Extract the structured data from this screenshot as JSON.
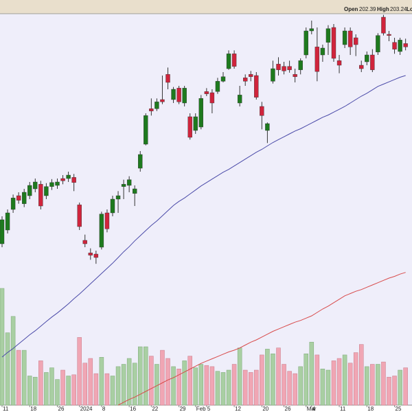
{
  "chart_data": {
    "type": "candlestick",
    "header_labels": [
      "Open",
      "High",
      "Lo"
    ],
    "categories": [
      "11",
      null,
      null,
      null,
      null,
      "18",
      null,
      null,
      null,
      null,
      "26",
      null,
      null,
      null,
      "2024",
      null,
      null,
      null,
      "8",
      null,
      null,
      null,
      null,
      "16",
      null,
      null,
      null,
      "22",
      null,
      null,
      null,
      null,
      "29",
      null,
      null,
      "Feb",
      null,
      "5",
      null,
      null,
      null,
      null,
      "12",
      null,
      null,
      null,
      null,
      "20",
      null,
      null,
      null,
      "26",
      null,
      null,
      null,
      "Mar",
      "4",
      null,
      null,
      null,
      null,
      "11",
      null,
      null,
      null,
      null,
      "18",
      null,
      null,
      null,
      null,
      "25",
      null,
      null
    ],
    "open": [
      167.4,
      169.8,
      173.4,
      175.8,
      174.4,
      175.8,
      177.0,
      177.8,
      175.8,
      177.4,
      177.6,
      178.8,
      178.8,
      179.0,
      174.2,
      168.0,
      165.8,
      165.6,
      166.8,
      172.8,
      172.8,
      175.2,
      177.4,
      177.6,
      176.2,
      180.6,
      184.8,
      191.0,
      191.0,
      192.6,
      197.0,
      192.6,
      194.6,
      192.0,
      189.6,
      187.2,
      187.8,
      194.0,
      193.8,
      194.0,
      195.8,
      198.0,
      200.6,
      192.0,
      196.4,
      197.0,
      196.8,
      191.4,
      187.2,
      195.8,
      198.8,
      198.4,
      198.4,
      197.0,
      197.8,
      200.4,
      204.6,
      201.8,
      200.4,
      202.6,
      205.2,
      199.4,
      202.2,
      204.6,
      203.4,
      198.6,
      199.2,
      200.4,
      200.9,
      207.0,
      204.0,
      202.6,
      201.0,
      202.39
    ],
    "high": [
      172.2,
      173.4,
      176.0,
      176.4,
      177.0,
      178.2,
      178.8,
      178.4,
      178.0,
      178.7,
      178.8,
      179.4,
      180.0,
      179.6,
      174.6,
      169.0,
      166.6,
      166.2,
      173.0,
      173.4,
      175.8,
      176.6,
      178.6,
      179.2,
      177.6,
      183.6,
      190.2,
      192.8,
      192.8,
      196.8,
      198.2,
      194.8,
      195.0,
      195.0,
      190.2,
      190.2,
      193.4,
      194.6,
      194.4,
      196.4,
      197.4,
      201.2,
      201.2,
      195.0,
      197.0,
      197.6,
      197.4,
      192.2,
      188.6,
      199.4,
      200.0,
      199.2,
      199.4,
      198.0,
      199.8,
      205.2,
      206.4,
      205.2,
      202.2,
      205.6,
      205.8,
      200.4,
      205.2,
      205.2,
      204.0,
      199.4,
      201.0,
      201.4,
      204.2,
      207.4,
      204.6,
      203.4,
      203.4,
      203.24
    ],
    "low": [
      166.8,
      169.2,
      172.8,
      174.4,
      173.8,
      175.2,
      176.4,
      173.4,
      175.2,
      176.8,
      177.0,
      177.8,
      178.2,
      176.6,
      169.8,
      166.8,
      164.6,
      163.9,
      166.4,
      169.4,
      172.2,
      172.8,
      175.2,
      176.4,
      174.0,
      180.0,
      184.6,
      189.8,
      190.6,
      191.8,
      194.4,
      192.0,
      191.8,
      191.4,
      185.6,
      186.6,
      187.4,
      193.2,
      190.2,
      193.6,
      195.6,
      197.8,
      198.0,
      191.4,
      195.0,
      195.8,
      192.6,
      187.4,
      185.0,
      195.4,
      196.8,
      197.0,
      197.3,
      195.6,
      197.0,
      199.8,
      204.0,
      195.8,
      199.2,
      200.4,
      199.2,
      197.2,
      201.6,
      200.4,
      200.2,
      197.4,
      198.6,
      197.4,
      200.4,
      203.8,
      202.8,
      200.6,
      200.4,
      201.2
    ],
    "close": [
      171.6,
      172.8,
      175.4,
      175.0,
      176.4,
      177.6,
      178.2,
      174.0,
      177.4,
      178.1,
      178.2,
      178.4,
      179.4,
      178.1,
      170.4,
      167.4,
      165.4,
      165.0,
      172.6,
      170.0,
      175.2,
      175.8,
      177.8,
      178.6,
      177.0,
      183.0,
      189.8,
      190.6,
      192.2,
      192.2,
      195.6,
      194.4,
      192.2,
      194.6,
      186.0,
      189.6,
      192.8,
      193.6,
      192.0,
      195.8,
      196.6,
      200.6,
      198.4,
      193.4,
      195.8,
      196.6,
      193.0,
      189.8,
      188.4,
      198.0,
      197.8,
      197.6,
      197.8,
      196.6,
      199.4,
      204.6,
      205.0,
      197.5,
      201.6,
      205.0,
      199.8,
      198.6,
      204.6,
      201.8,
      202.2,
      198.0,
      200.4,
      197.8,
      203.8,
      204.2,
      203.8,
      201.4,
      203.0,
      201.8
    ],
    "volume": [
      100,
      62,
      76,
      47,
      47,
      25,
      24,
      38,
      28,
      32,
      22,
      30,
      25,
      26,
      58,
      36,
      40,
      27,
      41,
      27,
      25,
      33,
      35,
      40,
      36,
      50,
      50,
      42,
      35,
      47,
      40,
      33,
      31,
      38,
      42,
      32,
      35,
      34,
      33,
      29,
      28,
      30,
      35,
      49,
      30,
      28,
      30,
      43,
      48,
      44,
      49,
      35,
      29,
      27,
      33,
      44,
      54,
      43,
      31,
      30,
      38,
      40,
      43,
      36,
      45,
      52,
      33,
      35,
      35,
      37,
      24,
      25,
      30,
      32
    ],
    "overlays": [
      {
        "color": "#4a4aa8",
        "values": [
          147.6,
          148.4,
          149.1,
          149.9,
          150.7,
          151.5,
          152.2,
          153.0,
          153.8,
          154.6,
          155.3,
          156.1,
          156.9,
          157.8,
          158.6,
          159.5,
          160.4,
          161.3,
          162.2,
          163.1,
          164.0,
          165.0,
          166.0,
          166.9,
          167.9,
          168.8,
          169.7,
          170.6,
          171.4,
          172.3,
          173.2,
          174.1,
          174.8,
          175.4,
          176.1,
          176.8,
          177.5,
          178.1,
          178.7,
          179.3,
          179.9,
          180.4,
          181.0,
          181.6,
          182.2,
          182.8,
          183.4,
          183.9,
          184.5,
          185.1,
          185.6,
          186.1,
          186.6,
          187.1,
          187.5,
          188.0,
          188.5,
          189.0,
          189.5,
          189.9,
          190.4,
          190.9,
          191.4,
          192.0,
          192.6,
          193.2,
          193.7,
          194.3,
          194.9,
          195.3,
          195.7,
          196.1,
          196.5,
          196.8
        ]
      },
      {
        "color": "#d84a4a",
        "values": [
          null,
          null,
          null,
          null,
          null,
          null,
          null,
          null,
          null,
          null,
          null,
          null,
          null,
          null,
          null,
          null,
          null,
          null,
          null,
          null,
          null,
          139.2,
          139.7,
          140.2,
          140.6,
          141.1,
          141.6,
          142.1,
          142.6,
          143.1,
          143.6,
          144.0,
          144.5,
          145.0,
          145.5,
          146.0,
          146.5,
          146.9,
          147.3,
          147.7,
          148.1,
          148.5,
          148.8,
          149.2,
          149.7,
          150.2,
          150.6,
          151.1,
          151.6,
          152.1,
          152.5,
          152.9,
          153.3,
          153.7,
          154.0,
          154.4,
          154.8,
          155.4,
          156.0,
          156.5,
          157.1,
          157.7,
          158.3,
          158.7,
          159.1,
          159.4,
          159.8,
          160.2,
          160.6,
          161.0,
          161.4,
          161.7,
          162.1,
          162.4
        ]
      }
    ],
    "up_color": "#1e7a1e",
    "down_color": "#d0243c",
    "volume_up_color": "#a9cfa3",
    "volume_down_color": "#f0a6b4",
    "ylim": [
      139.2,
      207.6
    ],
    "volume_lim": [
      0,
      100
    ]
  }
}
